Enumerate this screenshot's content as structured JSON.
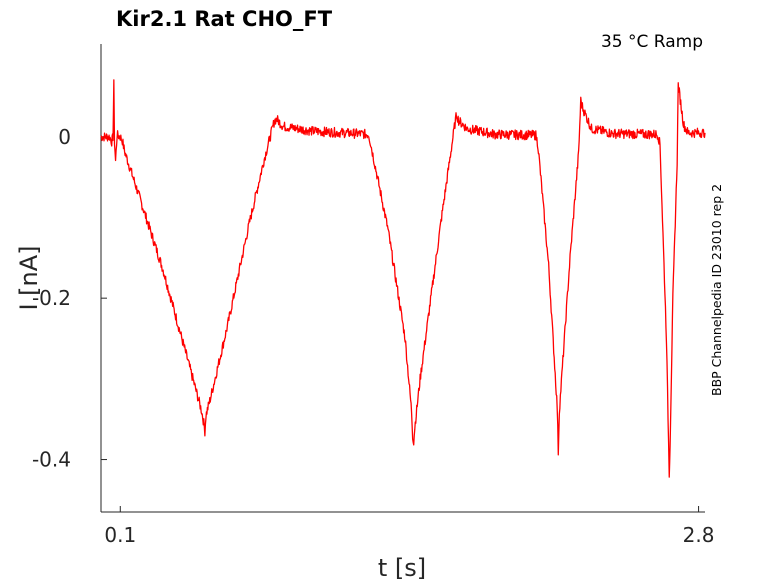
{
  "chart_data": {
    "type": "line",
    "title": "Kir2.1  Rat  CHO_FT",
    "subtitle": "35 °C  Ramp",
    "side_label": "BBP Channelpedia ID 23010 rep 2",
    "xlabel": "t [s]",
    "ylabel": "I [nA]",
    "xticks": [
      {
        "value": 0.1,
        "label": "0.1"
      },
      {
        "value": 2.8,
        "label": "2.8"
      }
    ],
    "yticks": [
      {
        "value": 0,
        "label": "0"
      },
      {
        "value": -0.2,
        "label": "-0.2"
      },
      {
        "value": -0.4,
        "label": "-0.4"
      }
    ],
    "xlim": [
      0.01,
      2.83
    ],
    "ylim": [
      -0.465,
      0.115
    ],
    "grid": false,
    "series": [
      {
        "color": "#ff0000",
        "points": [
          [
            0.01,
            0.0
          ],
          [
            0.05,
            0.0
          ],
          [
            0.06,
            -0.006
          ],
          [
            0.066,
            0.0
          ],
          [
            0.07,
            0.065
          ],
          [
            0.073,
            -0.005
          ],
          [
            0.078,
            -0.03
          ],
          [
            0.085,
            0.002
          ],
          [
            0.1,
            0.0
          ],
          [
            0.11,
            -0.005
          ],
          [
            0.12,
            -0.018
          ],
          [
            0.3,
            -0.165
          ],
          [
            0.48,
            -0.34
          ],
          [
            0.49,
            -0.355
          ],
          [
            0.495,
            -0.365
          ],
          [
            0.5,
            -0.345
          ],
          [
            0.52,
            -0.325
          ],
          [
            0.6,
            -0.235
          ],
          [
            0.7,
            -0.11
          ],
          [
            0.77,
            -0.03
          ],
          [
            0.82,
            0.02
          ],
          [
            0.83,
            0.022
          ],
          [
            0.86,
            0.013
          ],
          [
            1.0,
            0.007
          ],
          [
            1.2,
            0.004
          ],
          [
            1.26,
            0.003
          ],
          [
            1.27,
            -0.01
          ],
          [
            1.35,
            -0.115
          ],
          [
            1.43,
            -0.25
          ],
          [
            1.46,
            -0.34
          ],
          [
            1.465,
            -0.37
          ],
          [
            1.47,
            -0.378
          ],
          [
            1.475,
            -0.36
          ],
          [
            1.5,
            -0.3
          ],
          [
            1.6,
            -0.1
          ],
          [
            1.66,
            0.012
          ],
          [
            1.67,
            0.028
          ],
          [
            1.68,
            0.02
          ],
          [
            1.72,
            0.01
          ],
          [
            1.85,
            0.003
          ],
          [
            2.04,
            0.002
          ],
          [
            2.05,
            -0.01
          ],
          [
            2.1,
            -0.16
          ],
          [
            2.14,
            -0.335
          ],
          [
            2.145,
            -0.39
          ],
          [
            2.15,
            -0.34
          ],
          [
            2.2,
            -0.15
          ],
          [
            2.24,
            -0.02
          ],
          [
            2.25,
            0.045
          ],
          [
            2.26,
            0.035
          ],
          [
            2.3,
            0.01
          ],
          [
            2.4,
            0.004
          ],
          [
            2.61,
            0.003
          ],
          [
            2.62,
            -0.01
          ],
          [
            2.65,
            -0.25
          ],
          [
            2.66,
            -0.38
          ],
          [
            2.663,
            -0.418
          ],
          [
            2.667,
            -0.38
          ],
          [
            2.68,
            -0.2
          ],
          [
            2.7,
            -0.03
          ],
          [
            2.705,
            0.065
          ],
          [
            2.71,
            0.055
          ],
          [
            2.73,
            0.015
          ],
          [
            2.75,
            0.005
          ],
          [
            2.83,
            0.005
          ]
        ]
      }
    ]
  }
}
